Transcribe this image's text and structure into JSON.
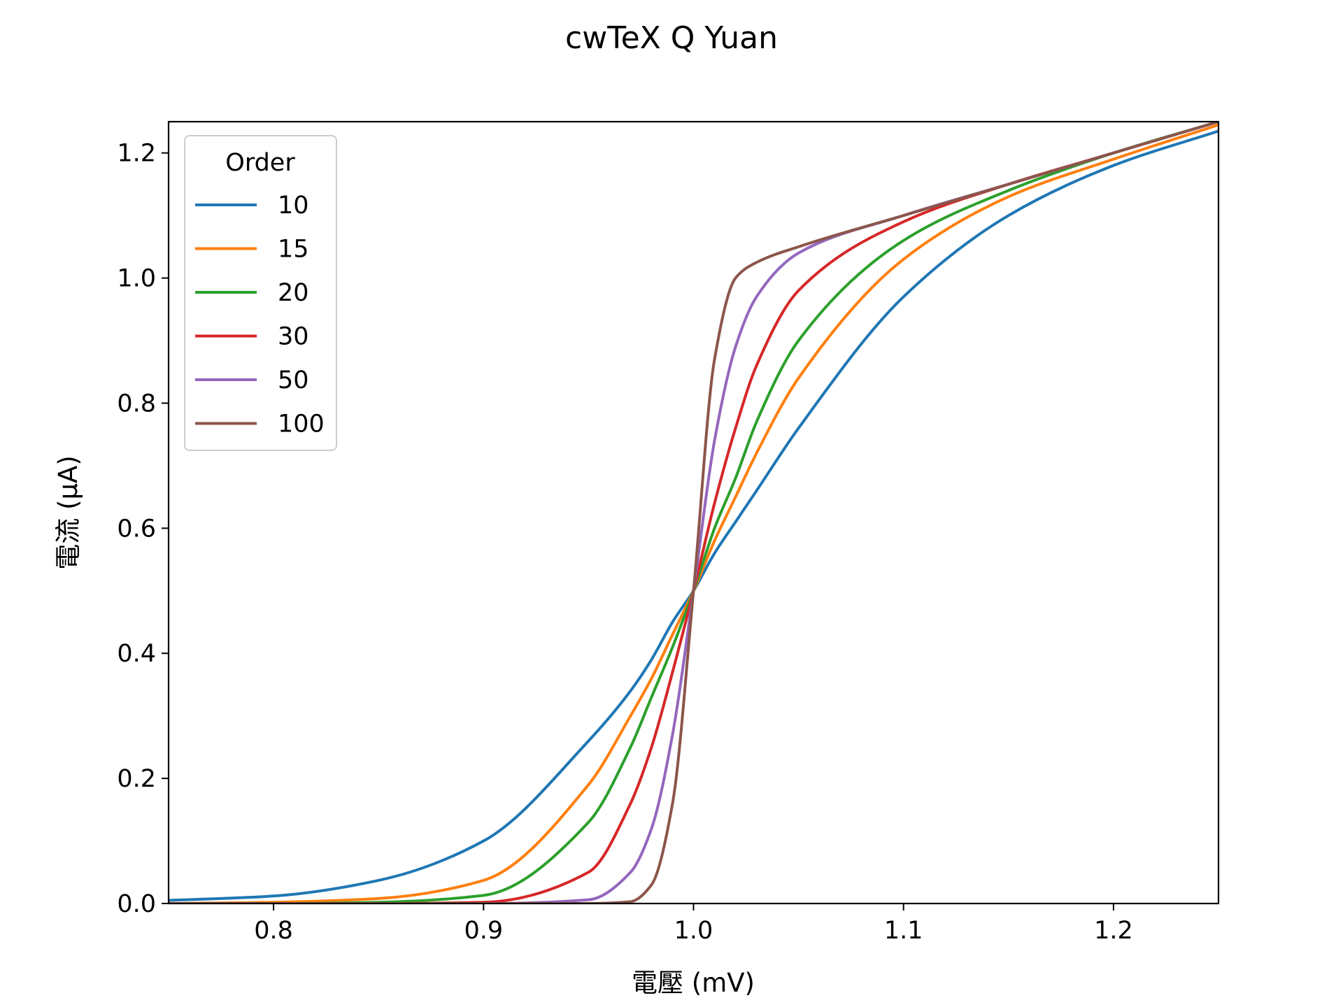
{
  "chart_data": {
    "type": "line",
    "title": "cwTeX Q Yuan",
    "xlabel": "電壓 (mV)",
    "ylabel": "電流 (μA)",
    "xlim": [
      0.75,
      1.25
    ],
    "ylim": [
      0.0,
      1.25
    ],
    "x_ticks": [
      0.8,
      0.9,
      1.0,
      1.1,
      1.2
    ],
    "x_tick_labels": [
      "0.8",
      "0.9",
      "1.0",
      "1.1",
      "1.2"
    ],
    "y_ticks": [
      0.0,
      0.2,
      0.4,
      0.6,
      0.8,
      1.0,
      1.2
    ],
    "y_tick_labels": [
      "0.0",
      "0.2",
      "0.4",
      "0.6",
      "0.8",
      "1.0",
      "1.2"
    ],
    "grid": false,
    "legend": {
      "title": "Order",
      "position": "top-left"
    },
    "x": [
      0.75,
      0.8,
      0.85,
      0.9,
      0.95,
      0.97,
      0.98,
      0.99,
      1.0,
      1.01,
      1.02,
      1.03,
      1.05,
      1.1,
      1.15,
      1.2,
      1.25
    ],
    "series": [
      {
        "name": "10",
        "color": "#1f77b4",
        "values": [
          0.005,
          0.012,
          0.037,
          0.1,
          0.26,
          0.34,
          0.39,
          0.45,
          0.5,
          0.56,
          0.61,
          0.66,
          0.76,
          0.97,
          1.1,
          1.18,
          1.235
        ]
      },
      {
        "name": "15",
        "color": "#ff7f0e",
        "values": [
          0.0,
          0.002,
          0.008,
          0.037,
          0.19,
          0.3,
          0.36,
          0.43,
          0.5,
          0.58,
          0.65,
          0.72,
          0.84,
          1.03,
          1.13,
          1.19,
          1.245
        ]
      },
      {
        "name": "20",
        "color": "#2ca02c",
        "values": [
          0.0,
          0.0,
          0.002,
          0.013,
          0.13,
          0.25,
          0.33,
          0.41,
          0.5,
          0.6,
          0.68,
          0.77,
          0.9,
          1.06,
          1.14,
          1.2,
          1.25
        ]
      },
      {
        "name": "30",
        "color": "#d62728",
        "values": [
          0.0,
          0.0,
          0.0,
          0.002,
          0.05,
          0.16,
          0.25,
          0.37,
          0.5,
          0.64,
          0.76,
          0.86,
          0.98,
          1.09,
          1.15,
          1.2,
          1.25
        ]
      },
      {
        "name": "50",
        "color": "#9467bd",
        "values": [
          0.0,
          0.0,
          0.0,
          0.0,
          0.006,
          0.05,
          0.12,
          0.27,
          0.5,
          0.74,
          0.89,
          0.97,
          1.04,
          1.1,
          1.15,
          1.2,
          1.25
        ]
      },
      {
        "name": "100",
        "color": "#8c564b",
        "values": [
          0.0,
          0.0,
          0.0,
          0.0,
          0.0,
          0.003,
          0.03,
          0.16,
          0.5,
          0.87,
          1.0,
          1.025,
          1.05,
          1.1,
          1.15,
          1.2,
          1.25
        ]
      }
    ]
  }
}
